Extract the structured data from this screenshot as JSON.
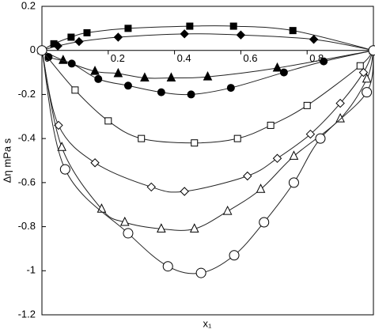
{
  "chart_data": {
    "type": "scatter",
    "x_label": "x₁",
    "y_label": "Δη mPa s",
    "xlim": [
      0,
      1
    ],
    "ylim": [
      -1.2,
      0.2
    ],
    "xticks": [
      0,
      0.2,
      0.4,
      0.6,
      0.8
    ],
    "yticks": [
      0.2,
      0,
      -0.2,
      -0.4,
      -0.6,
      -0.8,
      -1,
      -1.2
    ],
    "series": [
      {
        "marker": "square",
        "filled": true,
        "color": "#000000",
        "x": [
          0,
          0.036,
          0.088,
          0.136,
          0.26,
          0.446,
          0.578,
          0.757,
          1
        ],
        "values": [
          0,
          0.03,
          0.06,
          0.08,
          0.1,
          0.11,
          0.11,
          0.09,
          0
        ]
      },
      {
        "marker": "diamond",
        "filled": true,
        "color": "#000000",
        "x": [
          0,
          0.048,
          0.112,
          0.23,
          0.43,
          0.6,
          0.82,
          1
        ],
        "values": [
          0,
          0.02,
          0.04,
          0.06,
          0.075,
          0.07,
          0.05,
          0
        ]
      },
      {
        "marker": "triangle",
        "filled": true,
        "color": "#000000",
        "x": [
          0,
          0.064,
          0.16,
          0.23,
          0.31,
          0.39,
          0.5,
          0.71,
          1
        ],
        "values": [
          0,
          -0.045,
          -0.095,
          -0.105,
          -0.125,
          -0.125,
          -0.12,
          -0.08,
          0
        ]
      },
      {
        "marker": "circle",
        "filled": true,
        "color": "#000000",
        "x": [
          0,
          0.02,
          0.09,
          0.17,
          0.26,
          0.36,
          0.45,
          0.57,
          0.73,
          0.85,
          1
        ],
        "values": [
          0,
          -0.03,
          -0.06,
          -0.13,
          -0.16,
          -0.19,
          -0.2,
          -0.17,
          -0.1,
          -0.05,
          0
        ]
      },
      {
        "marker": "square",
        "filled": false,
        "color": "#000000",
        "x": [
          0,
          0.1,
          0.2,
          0.3,
          0.46,
          0.59,
          0.69,
          0.8,
          0.96,
          1
        ],
        "values": [
          0,
          -0.18,
          -0.32,
          -0.4,
          -0.42,
          -0.4,
          -0.34,
          -0.25,
          -0.07,
          0
        ]
      },
      {
        "marker": "diamond",
        "filled": false,
        "color": "#000000",
        "x": [
          0,
          0.05,
          0.16,
          0.33,
          0.43,
          0.62,
          0.71,
          0.81,
          0.9,
          0.97,
          1
        ],
        "values": [
          0,
          -0.34,
          -0.51,
          -0.62,
          -0.64,
          -0.57,
          -0.49,
          -0.38,
          -0.24,
          -0.1,
          0
        ]
      },
      {
        "marker": "triangle",
        "filled": false,
        "color": "#000000",
        "x": [
          0,
          0.06,
          0.18,
          0.25,
          0.36,
          0.46,
          0.56,
          0.66,
          0.76,
          0.9,
          0.98,
          1
        ],
        "values": [
          0,
          -0.44,
          -0.72,
          -0.78,
          -0.81,
          -0.81,
          -0.73,
          -0.63,
          -0.48,
          -0.31,
          -0.13,
          0
        ]
      },
      {
        "marker": "circle",
        "filled": false,
        "color": "#000000",
        "x": [
          0,
          0.07,
          0.26,
          0.38,
          0.48,
          0.58,
          0.67,
          0.76,
          0.84,
          0.98,
          1
        ],
        "values": [
          0,
          -0.54,
          -0.83,
          -0.98,
          -1.01,
          -0.93,
          -0.78,
          -0.6,
          -0.4,
          -0.19,
          0
        ]
      }
    ]
  }
}
